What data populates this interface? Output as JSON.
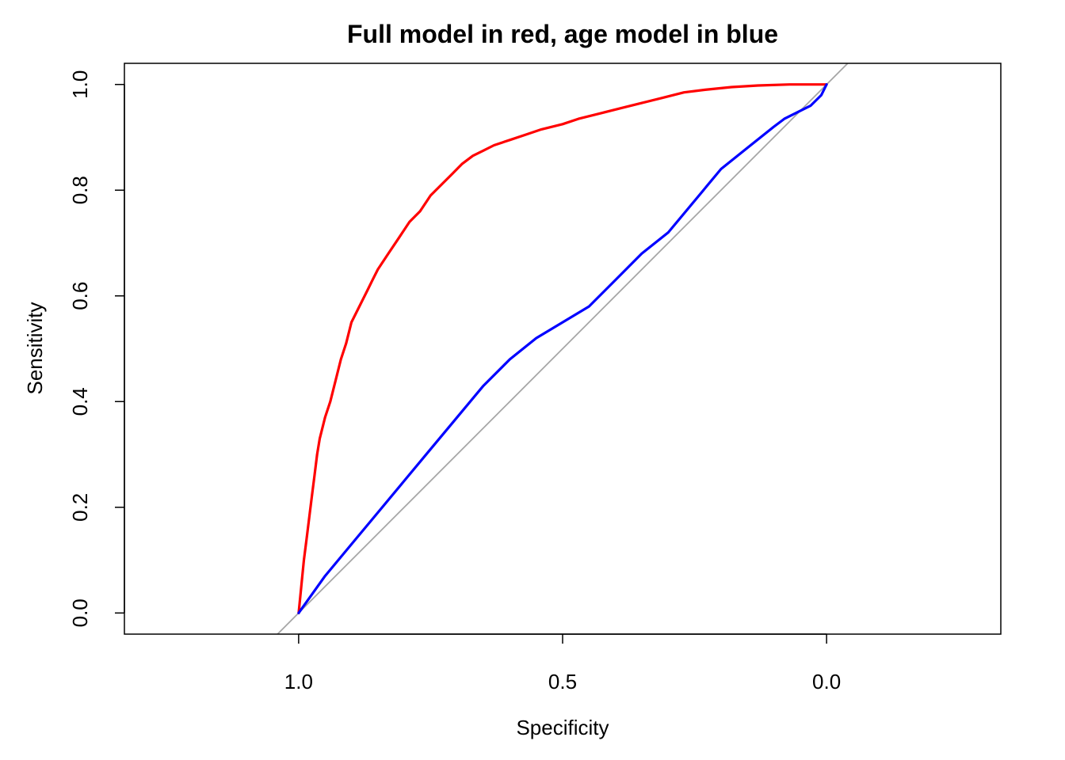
{
  "chart_data": {
    "type": "line",
    "title": "Full model in red, age model in blue",
    "xlabel": "Specificity",
    "ylabel": "Sensitivity",
    "x_reversed": true,
    "xlim": [
      1.33,
      -0.33
    ],
    "ylim": [
      -0.04,
      1.04
    ],
    "x_ticks": [
      1.0,
      0.5,
      0.0
    ],
    "x_tick_labels": [
      "1.0",
      "0.5",
      "0.0"
    ],
    "y_ticks": [
      0.0,
      0.2,
      0.4,
      0.6,
      0.8,
      1.0
    ],
    "y_tick_labels": [
      "0.0",
      "0.2",
      "0.4",
      "0.6",
      "0.8",
      "1.0"
    ],
    "grid": false,
    "diagonal_color": "#a6a6a6",
    "series": [
      {
        "color": "#ff0000",
        "x": [
          1.0,
          0.995,
          0.99,
          0.985,
          0.98,
          0.975,
          0.97,
          0.965,
          0.96,
          0.95,
          0.94,
          0.93,
          0.92,
          0.91,
          0.9,
          0.885,
          0.87,
          0.86,
          0.85,
          0.83,
          0.81,
          0.79,
          0.77,
          0.75,
          0.73,
          0.71,
          0.69,
          0.67,
          0.65,
          0.63,
          0.6,
          0.57,
          0.54,
          0.5,
          0.47,
          0.43,
          0.39,
          0.35,
          0.31,
          0.27,
          0.23,
          0.18,
          0.13,
          0.07,
          0.0
        ],
        "y": [
          0.0,
          0.05,
          0.1,
          0.14,
          0.18,
          0.22,
          0.26,
          0.3,
          0.33,
          0.37,
          0.4,
          0.44,
          0.48,
          0.51,
          0.55,
          0.58,
          0.61,
          0.63,
          0.65,
          0.68,
          0.71,
          0.74,
          0.76,
          0.79,
          0.81,
          0.83,
          0.85,
          0.865,
          0.875,
          0.885,
          0.895,
          0.905,
          0.915,
          0.925,
          0.935,
          0.945,
          0.955,
          0.965,
          0.975,
          0.985,
          0.99,
          0.995,
          0.998,
          1.0,
          1.0
        ]
      },
      {
        "color": "#0000ff",
        "x": [
          1.0,
          0.95,
          0.9,
          0.85,
          0.8,
          0.75,
          0.7,
          0.65,
          0.6,
          0.55,
          0.5,
          0.45,
          0.4,
          0.35,
          0.3,
          0.25,
          0.2,
          0.15,
          0.1,
          0.08,
          0.05,
          0.03,
          0.01,
          0.0
        ],
        "y": [
          0.0,
          0.07,
          0.13,
          0.19,
          0.25,
          0.31,
          0.37,
          0.43,
          0.48,
          0.52,
          0.55,
          0.58,
          0.63,
          0.68,
          0.72,
          0.78,
          0.84,
          0.88,
          0.92,
          0.935,
          0.95,
          0.96,
          0.98,
          1.0
        ]
      }
    ]
  }
}
